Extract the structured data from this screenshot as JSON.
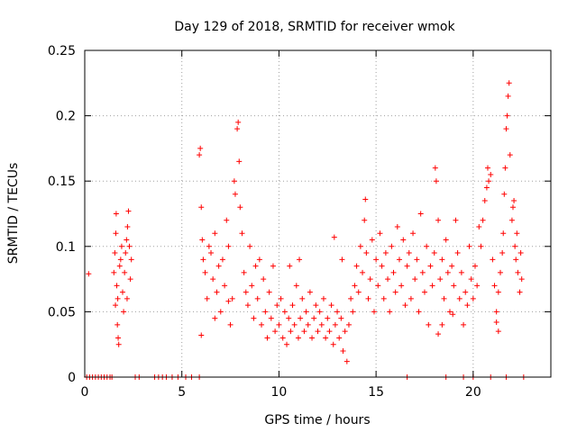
{
  "chart_data": {
    "type": "scatter",
    "title": "Day 129 of 2018, SRMTID for receiver wmok",
    "xlabel": "GPS time / hours",
    "ylabel": "SRMTID / TECUs",
    "xlim": [
      0,
      24
    ],
    "ylim": [
      0,
      0.25
    ],
    "grid": true,
    "marker": "+",
    "color": "#ff0000",
    "x_ticks": [
      {
        "value": 0,
        "label": "0"
      },
      {
        "value": 5,
        "label": "5"
      },
      {
        "value": 10,
        "label": "10"
      },
      {
        "value": 15,
        "label": "15"
      },
      {
        "value": 20,
        "label": "20"
      }
    ],
    "y_ticks": [
      {
        "value": 0,
        "label": "0"
      },
      {
        "value": 0.05,
        "label": "0.05"
      },
      {
        "value": 0.1,
        "label": "0.1"
      },
      {
        "value": 0.15,
        "label": "0.15"
      },
      {
        "value": 0.2,
        "label": "0.2"
      },
      {
        "value": 0.25,
        "label": "0.25"
      }
    ],
    "series": [
      {
        "name": "SRMTID",
        "points": [
          [
            0.2,
            0.079
          ],
          [
            0.1,
            0
          ],
          [
            0.25,
            0
          ],
          [
            0.4,
            0
          ],
          [
            0.55,
            0
          ],
          [
            0.7,
            0
          ],
          [
            0.85,
            0
          ],
          [
            1.0,
            0
          ],
          [
            1.15,
            0
          ],
          [
            1.3,
            0
          ],
          [
            1.4,
            0
          ],
          [
            2.6,
            0
          ],
          [
            2.8,
            0
          ],
          [
            3.6,
            0
          ],
          [
            3.8,
            0
          ],
          [
            4.0,
            0
          ],
          [
            4.2,
            0
          ],
          [
            4.5,
            0
          ],
          [
            4.8,
            0
          ],
          [
            5.2,
            0
          ],
          [
            5.5,
            0
          ],
          [
            5.9,
            0
          ],
          [
            16.6,
            0
          ],
          [
            18.6,
            0
          ],
          [
            19.5,
            0
          ],
          [
            20.0,
            0
          ],
          [
            20.9,
            0
          ],
          [
            21.7,
            0
          ],
          [
            22.6,
            0
          ],
          [
            1.5,
            0.08
          ],
          [
            1.55,
            0.095
          ],
          [
            1.6,
            0.11
          ],
          [
            1.62,
            0.125
          ],
          [
            1.65,
            0.07
          ],
          [
            1.7,
            0.06
          ],
          [
            1.72,
            0.03
          ],
          [
            1.75,
            0.025
          ],
          [
            1.8,
            0.085
          ],
          [
            1.85,
            0.09
          ],
          [
            1.9,
            0.1
          ],
          [
            1.95,
            0.065
          ],
          [
            2.0,
            0.05
          ],
          [
            2.05,
            0.08
          ],
          [
            2.1,
            0.095
          ],
          [
            2.15,
            0.105
          ],
          [
            2.2,
            0.115
          ],
          [
            2.25,
            0.127
          ],
          [
            2.3,
            0.1
          ],
          [
            2.35,
            0.075
          ],
          [
            2.4,
            0.09
          ],
          [
            1.58,
            0.055
          ],
          [
            1.68,
            0.04
          ],
          [
            2.18,
            0.06
          ],
          [
            5.9,
            0.17
          ],
          [
            5.95,
            0.175
          ],
          [
            6.0,
            0.13
          ],
          [
            6.05,
            0.105
          ],
          [
            6.1,
            0.09
          ],
          [
            6.2,
            0.08
          ],
          [
            6.3,
            0.06
          ],
          [
            6.4,
            0.1
          ],
          [
            6.5,
            0.095
          ],
          [
            6.6,
            0.075
          ],
          [
            6.7,
            0.11
          ],
          [
            6.8,
            0.065
          ],
          [
            6.9,
            0.085
          ],
          [
            7.0,
            0.05
          ],
          [
            7.1,
            0.09
          ],
          [
            7.2,
            0.07
          ],
          [
            7.3,
            0.12
          ],
          [
            7.4,
            0.1
          ],
          [
            7.5,
            0.04
          ],
          [
            7.6,
            0.06
          ],
          [
            7.7,
            0.15
          ],
          [
            7.75,
            0.14
          ],
          [
            7.85,
            0.19
          ],
          [
            7.9,
            0.195
          ],
          [
            7.95,
            0.165
          ],
          [
            8.0,
            0.13
          ],
          [
            8.1,
            0.11
          ],
          [
            8.2,
            0.08
          ],
          [
            8.3,
            0.065
          ],
          [
            8.4,
            0.055
          ],
          [
            8.5,
            0.1
          ],
          [
            8.6,
            0.07
          ],
          [
            8.7,
            0.045
          ],
          [
            8.8,
            0.085
          ],
          [
            8.9,
            0.06
          ],
          [
            9.0,
            0.09
          ],
          [
            9.1,
            0.04
          ],
          [
            9.2,
            0.075
          ],
          [
            9.3,
            0.05
          ],
          [
            9.4,
            0.03
          ],
          [
            9.5,
            0.065
          ],
          [
            9.6,
            0.045
          ],
          [
            9.7,
            0.085
          ],
          [
            9.8,
            0.035
          ],
          [
            9.9,
            0.055
          ],
          [
            6.0,
            0.032
          ],
          [
            6.7,
            0.045
          ],
          [
            7.4,
            0.058
          ],
          [
            10.0,
            0.04
          ],
          [
            10.1,
            0.06
          ],
          [
            10.2,
            0.03
          ],
          [
            10.3,
            0.05
          ],
          [
            10.4,
            0.025
          ],
          [
            10.5,
            0.045
          ],
          [
            10.6,
            0.035
          ],
          [
            10.7,
            0.055
          ],
          [
            10.8,
            0.04
          ],
          [
            10.9,
            0.07
          ],
          [
            11.0,
            0.03
          ],
          [
            11.1,
            0.045
          ],
          [
            11.2,
            0.06
          ],
          [
            11.3,
            0.035
          ],
          [
            11.4,
            0.05
          ],
          [
            11.5,
            0.04
          ],
          [
            11.6,
            0.065
          ],
          [
            11.7,
            0.03
          ],
          [
            11.8,
            0.045
          ],
          [
            11.9,
            0.055
          ],
          [
            12.0,
            0.035
          ],
          [
            12.1,
            0.05
          ],
          [
            12.2,
            0.04
          ],
          [
            12.3,
            0.06
          ],
          [
            12.4,
            0.03
          ],
          [
            12.5,
            0.045
          ],
          [
            12.6,
            0.035
          ],
          [
            12.7,
            0.055
          ],
          [
            12.8,
            0.025
          ],
          [
            12.9,
            0.04
          ],
          [
            13.0,
            0.05
          ],
          [
            13.1,
            0.03
          ],
          [
            13.2,
            0.045
          ],
          [
            13.3,
            0.02
          ],
          [
            13.4,
            0.035
          ],
          [
            13.5,
            0.012
          ],
          [
            13.6,
            0.04
          ],
          [
            13.7,
            0.06
          ],
          [
            13.8,
            0.05
          ],
          [
            13.9,
            0.07
          ],
          [
            10.55,
            0.085
          ],
          [
            11.05,
            0.09
          ],
          [
            12.85,
            0.107
          ],
          [
            13.25,
            0.09
          ],
          [
            14.0,
            0.085
          ],
          [
            14.1,
            0.065
          ],
          [
            14.2,
            0.1
          ],
          [
            14.3,
            0.08
          ],
          [
            14.4,
            0.12
          ],
          [
            14.45,
            0.136
          ],
          [
            14.5,
            0.095
          ],
          [
            14.6,
            0.06
          ],
          [
            14.7,
            0.075
          ],
          [
            14.8,
            0.105
          ],
          [
            14.9,
            0.05
          ],
          [
            15.0,
            0.09
          ],
          [
            15.1,
            0.07
          ],
          [
            15.2,
            0.11
          ],
          [
            15.3,
            0.085
          ],
          [
            15.4,
            0.06
          ],
          [
            15.5,
            0.095
          ],
          [
            15.6,
            0.075
          ],
          [
            15.7,
            0.05
          ],
          [
            15.8,
            0.1
          ],
          [
            15.9,
            0.08
          ],
          [
            16.0,
            0.065
          ],
          [
            16.1,
            0.115
          ],
          [
            16.2,
            0.09
          ],
          [
            16.3,
            0.07
          ],
          [
            16.4,
            0.105
          ],
          [
            16.5,
            0.055
          ],
          [
            16.6,
            0.085
          ],
          [
            16.7,
            0.095
          ],
          [
            16.8,
            0.06
          ],
          [
            16.9,
            0.11
          ],
          [
            17.0,
            0.075
          ],
          [
            17.1,
            0.09
          ],
          [
            17.2,
            0.05
          ],
          [
            17.3,
            0.125
          ],
          [
            17.4,
            0.08
          ],
          [
            17.5,
            0.065
          ],
          [
            17.6,
            0.1
          ],
          [
            17.7,
            0.04
          ],
          [
            17.8,
            0.085
          ],
          [
            17.9,
            0.07
          ],
          [
            18.0,
            0.095
          ],
          [
            18.05,
            0.16
          ],
          [
            18.1,
            0.15
          ],
          [
            18.2,
            0.12
          ],
          [
            18.3,
            0.075
          ],
          [
            18.4,
            0.09
          ],
          [
            18.5,
            0.06
          ],
          [
            18.6,
            0.105
          ],
          [
            18.7,
            0.08
          ],
          [
            18.8,
            0.05
          ],
          [
            18.9,
            0.085
          ],
          [
            19.0,
            0.07
          ],
          [
            19.1,
            0.12
          ],
          [
            19.2,
            0.095
          ],
          [
            19.3,
            0.06
          ],
          [
            19.4,
            0.08
          ],
          [
            19.5,
            0.04
          ],
          [
            19.6,
            0.065
          ],
          [
            19.7,
            0.055
          ],
          [
            19.8,
            0.1
          ],
          [
            19.9,
            0.075
          ],
          [
            20.0,
            0.06
          ],
          [
            20.1,
            0.085
          ],
          [
            20.2,
            0.07
          ],
          [
            20.3,
            0.115
          ],
          [
            20.4,
            0.1
          ],
          [
            20.5,
            0.12
          ],
          [
            20.6,
            0.135
          ],
          [
            20.7,
            0.145
          ],
          [
            20.75,
            0.16
          ],
          [
            20.8,
            0.15
          ],
          [
            20.9,
            0.155
          ],
          [
            21.0,
            0.09
          ],
          [
            21.1,
            0.07
          ],
          [
            21.2,
            0.05
          ],
          [
            21.3,
            0.065
          ],
          [
            21.4,
            0.08
          ],
          [
            21.5,
            0.095
          ],
          [
            21.55,
            0.11
          ],
          [
            21.6,
            0.14
          ],
          [
            21.65,
            0.16
          ],
          [
            21.7,
            0.19
          ],
          [
            21.75,
            0.2
          ],
          [
            21.8,
            0.215
          ],
          [
            21.85,
            0.225
          ],
          [
            21.9,
            0.17
          ],
          [
            22.0,
            0.12
          ],
          [
            22.05,
            0.13
          ],
          [
            22.1,
            0.135
          ],
          [
            22.15,
            0.1
          ],
          [
            22.2,
            0.09
          ],
          [
            22.25,
            0.11
          ],
          [
            22.3,
            0.08
          ],
          [
            22.4,
            0.065
          ],
          [
            22.5,
            0.075
          ],
          [
            22.45,
            0.095
          ],
          [
            21.2,
            0.042
          ],
          [
            21.3,
            0.035
          ],
          [
            18.2,
            0.033
          ],
          [
            18.4,
            0.04
          ],
          [
            18.95,
            0.048
          ]
        ]
      }
    ]
  }
}
